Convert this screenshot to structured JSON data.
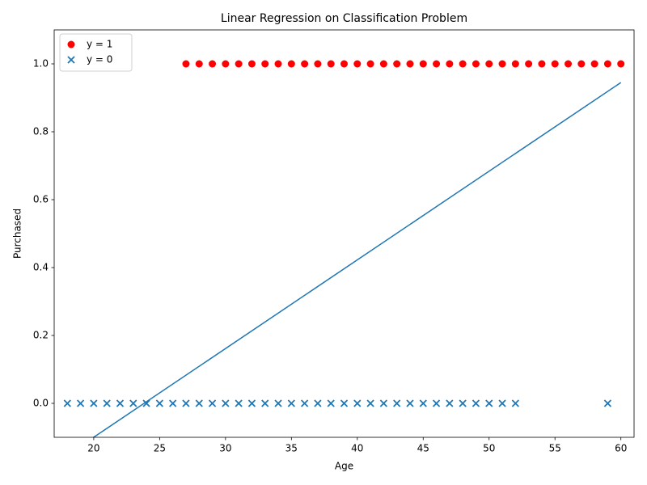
{
  "chart_data": {
    "type": "scatter",
    "title": "Linear Regression on Classification Problem",
    "xlabel": "Age",
    "ylabel": "Purchased",
    "xlim": [
      17,
      61
    ],
    "ylim": [
      -0.1,
      1.1
    ],
    "xticks": [
      20,
      25,
      30,
      35,
      40,
      45,
      50,
      55,
      60
    ],
    "yticks": [
      {
        "value": 0,
        "label": "0.0"
      },
      0.2,
      0.4,
      0.6,
      0.8,
      {
        "value": 1,
        "label": "1.0"
      }
    ],
    "legend": "upper left",
    "series": [
      {
        "name": "y = 1",
        "color": "#ff0000",
        "marker": "o",
        "x": [
          27,
          28,
          29,
          30,
          31,
          32,
          33,
          34,
          35,
          36,
          37,
          38,
          39,
          40,
          41,
          42,
          43,
          44,
          45,
          46,
          47,
          48,
          49,
          50,
          51,
          52,
          53,
          54,
          55,
          56,
          57,
          58,
          59,
          60
        ],
        "values": [
          1,
          1,
          1,
          1,
          1,
          1,
          1,
          1,
          1,
          1,
          1,
          1,
          1,
          1,
          1,
          1,
          1,
          1,
          1,
          1,
          1,
          1,
          1,
          1,
          1,
          1,
          1,
          1,
          1,
          1,
          1,
          1,
          1,
          1
        ]
      },
      {
        "name": "y = 0",
        "color": "#1f77b4",
        "marker": "x",
        "x": [
          18,
          19,
          20,
          21,
          22,
          23,
          24,
          25,
          26,
          27,
          28,
          29,
          30,
          31,
          32,
          33,
          34,
          35,
          36,
          37,
          38,
          39,
          40,
          41,
          42,
          43,
          44,
          45,
          46,
          47,
          48,
          49,
          50,
          51,
          52,
          59
        ],
        "values": [
          0,
          0,
          0,
          0,
          0,
          0,
          0,
          0,
          0,
          0,
          0,
          0,
          0,
          0,
          0,
          0,
          0,
          0,
          0,
          0,
          0,
          0,
          0,
          0,
          0,
          0,
          0,
          0,
          0,
          0,
          0,
          0,
          0,
          0,
          0,
          0
        ]
      },
      {
        "type": "line",
        "color": "#1f77b4",
        "x": [
          18,
          60
        ],
        "values": [
          -0.152,
          0.945
        ]
      }
    ]
  }
}
